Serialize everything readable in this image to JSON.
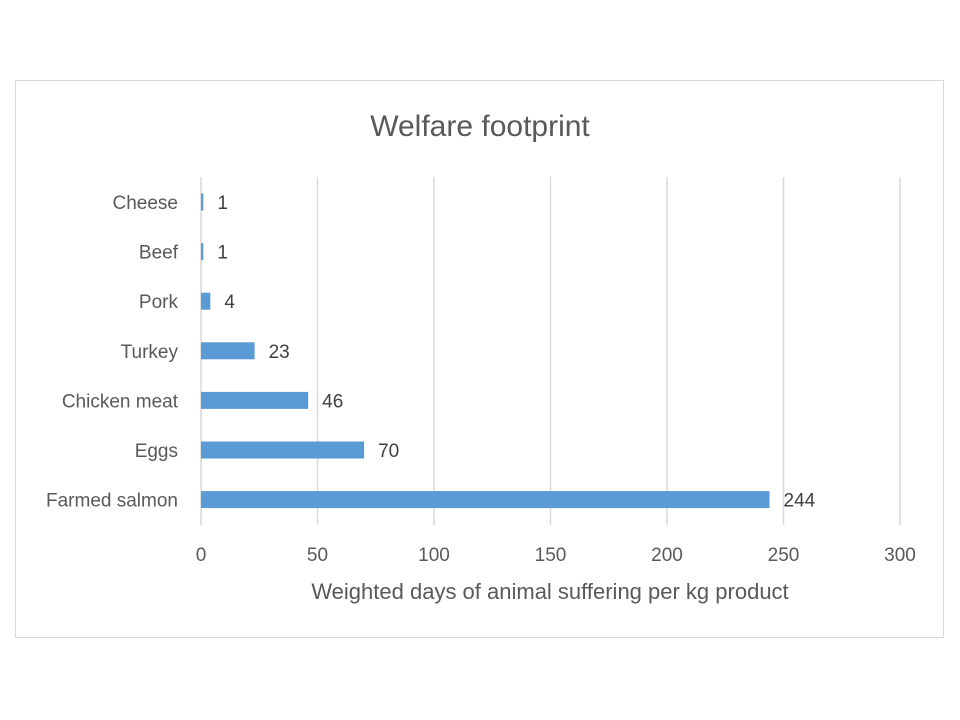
{
  "chart_data": {
    "type": "bar",
    "orientation": "horizontal",
    "title": "Welfare footprint",
    "xlabel": "Weighted days of animal suffering per kg product",
    "ylabel": "",
    "categories": [
      "Cheese",
      "Beef",
      "Pork",
      "Turkey",
      "Chicken meat",
      "Eggs",
      "Farmed salmon"
    ],
    "values": [
      1,
      1,
      4,
      23,
      46,
      70,
      244
    ],
    "data_labels": [
      "1",
      "1",
      "4",
      "23",
      "46",
      "70",
      "244"
    ],
    "xlim": [
      0,
      300
    ],
    "xticks": [
      0,
      50,
      100,
      150,
      200,
      250,
      300
    ],
    "grid": "vertical",
    "legend": "none",
    "bar_color": "#5b9bd5",
    "grid_color": "#d9d9d9"
  }
}
